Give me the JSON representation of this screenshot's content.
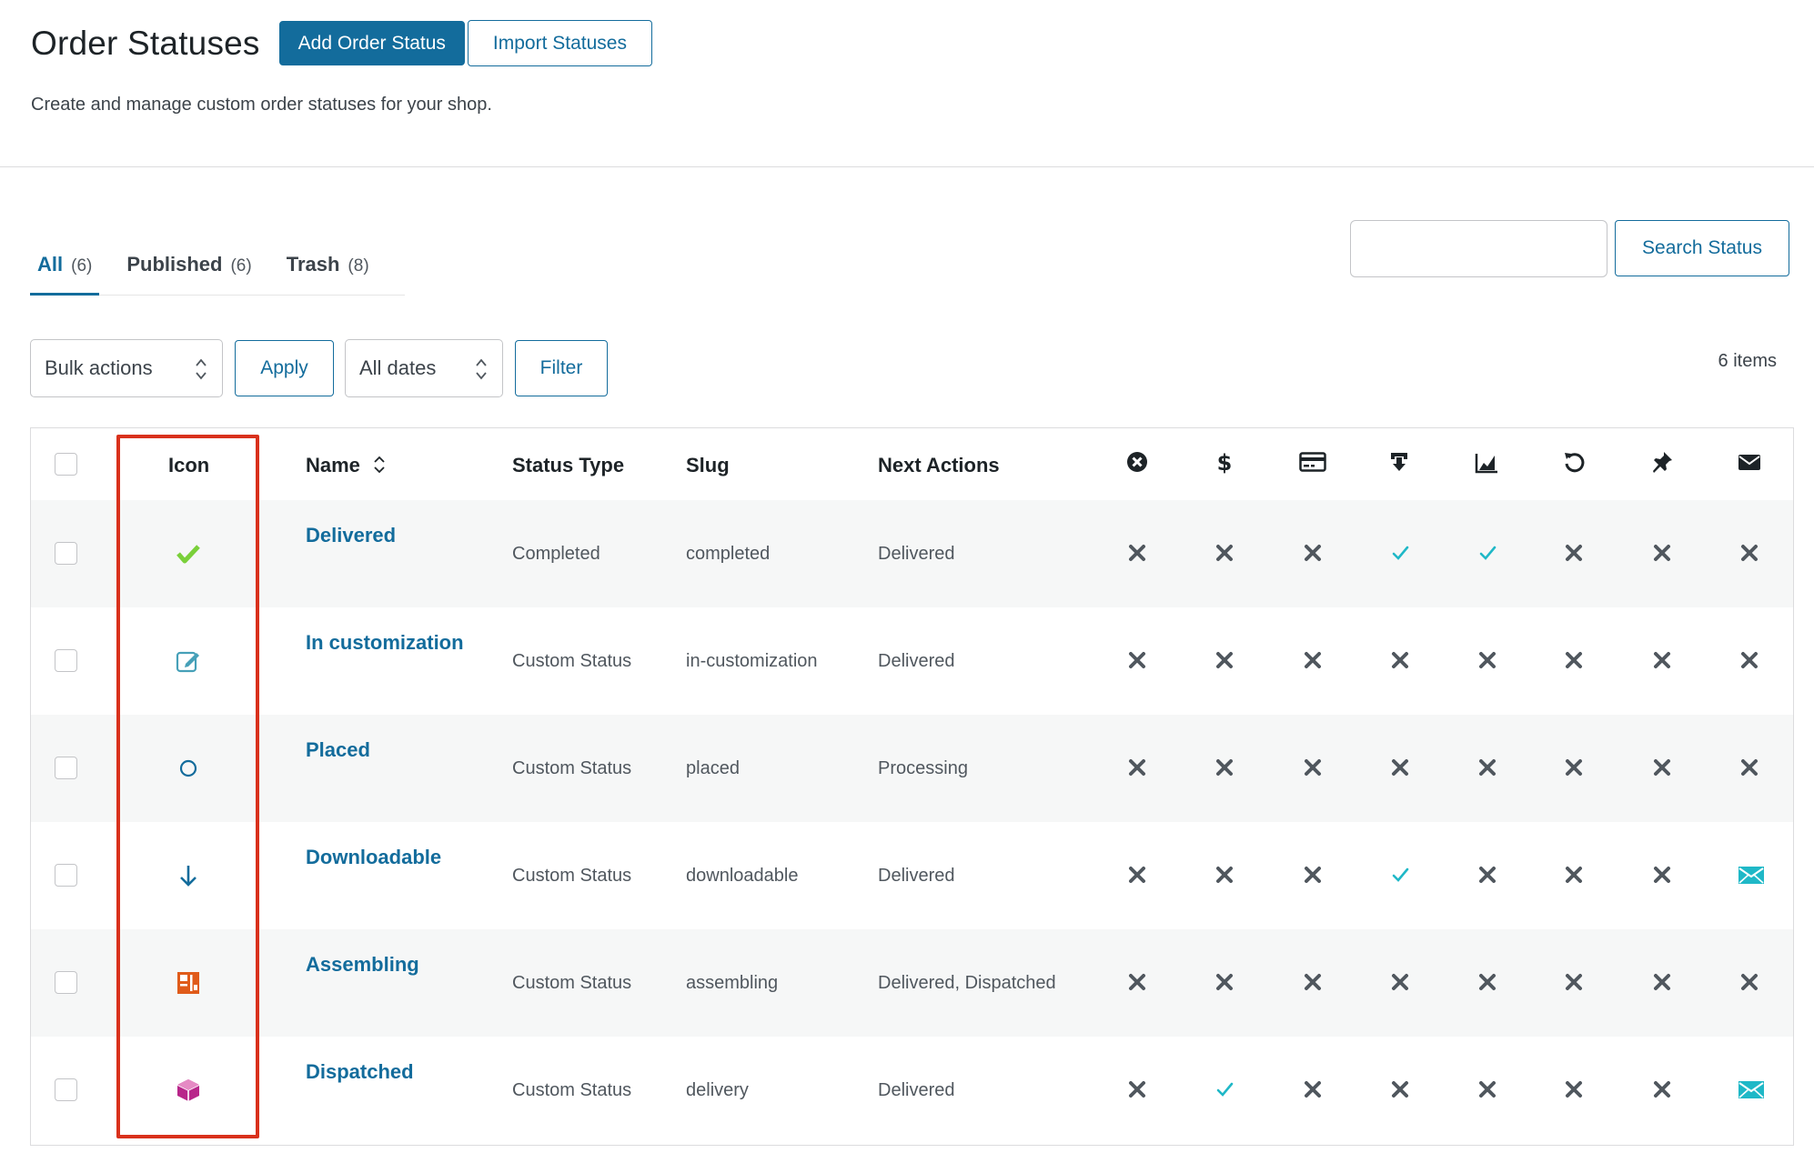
{
  "header": {
    "title": "Order Statuses",
    "add_button": "Add Order Status",
    "import_button": "Import Statuses",
    "subtitle": "Create and manage custom order statuses for your shop."
  },
  "tabs": [
    {
      "label": "All",
      "count": "(6)",
      "active": true
    },
    {
      "label": "Published",
      "count": "(6)",
      "active": false
    },
    {
      "label": "Trash",
      "count": "(8)",
      "active": false
    }
  ],
  "search": {
    "value": "",
    "placeholder": "",
    "button": "Search Status"
  },
  "toolbar": {
    "bulk_actions": "Bulk actions",
    "apply": "Apply",
    "dates": "All dates",
    "filter": "Filter",
    "items_count": "6 items"
  },
  "table": {
    "headers": {
      "icon": "Icon",
      "name": "Name",
      "status_type": "Status Type",
      "slug": "Slug",
      "next_actions": "Next Actions"
    },
    "flag_columns": [
      "cancel-icon",
      "dollar-icon",
      "credit-card-icon",
      "download-tray-icon",
      "chart-area-icon",
      "refresh-icon",
      "pin-icon",
      "envelope-icon"
    ],
    "rows": [
      {
        "icon": "checkmark-icon",
        "icon_color": "#7ad03a",
        "name": "Delivered",
        "status_type": "Completed",
        "slug": "completed",
        "next_actions": "Delivered",
        "flags": [
          "x",
          "x",
          "x",
          "check",
          "check",
          "x",
          "x",
          "x"
        ]
      },
      {
        "icon": "edit-icon",
        "icon_color": "#46a0b8",
        "name": "In customization",
        "status_type": "Custom Status",
        "slug": "in-customization",
        "next_actions": "Delivered",
        "flags": [
          "x",
          "x",
          "x",
          "x",
          "x",
          "x",
          "x",
          "x"
        ]
      },
      {
        "icon": "circle-icon",
        "icon_color": "#136c9c",
        "name": "Placed",
        "status_type": "Custom Status",
        "slug": "placed",
        "next_actions": "Processing",
        "flags": [
          "x",
          "x",
          "x",
          "x",
          "x",
          "x",
          "x",
          "x"
        ]
      },
      {
        "icon": "arrow-down-icon",
        "icon_color": "#136c9c",
        "name": "Downloadable",
        "status_type": "Custom Status",
        "slug": "downloadable",
        "next_actions": "Delivered",
        "flags": [
          "x",
          "x",
          "x",
          "check",
          "x",
          "x",
          "x",
          "mail"
        ]
      },
      {
        "icon": "assembling-icon",
        "icon_color": "#e05b1a",
        "name": "Assembling",
        "status_type": "Custom Status",
        "slug": "assembling",
        "next_actions": "Delivered, Dispatched",
        "flags": [
          "x",
          "x",
          "x",
          "x",
          "x",
          "x",
          "x",
          "x"
        ]
      },
      {
        "icon": "box-icon",
        "icon_color": "#b8268a",
        "name": "Dispatched",
        "status_type": "Custom Status",
        "slug": "delivery",
        "next_actions": "Delivered",
        "flags": [
          "x",
          "check",
          "x",
          "x",
          "x",
          "x",
          "x",
          "mail"
        ]
      }
    ]
  },
  "colors": {
    "primary": "#136c9c",
    "check": "#1fb8c7",
    "mail": "#1fb8c7",
    "x_mark": "#50575e",
    "highlight": "#d9311c"
  }
}
